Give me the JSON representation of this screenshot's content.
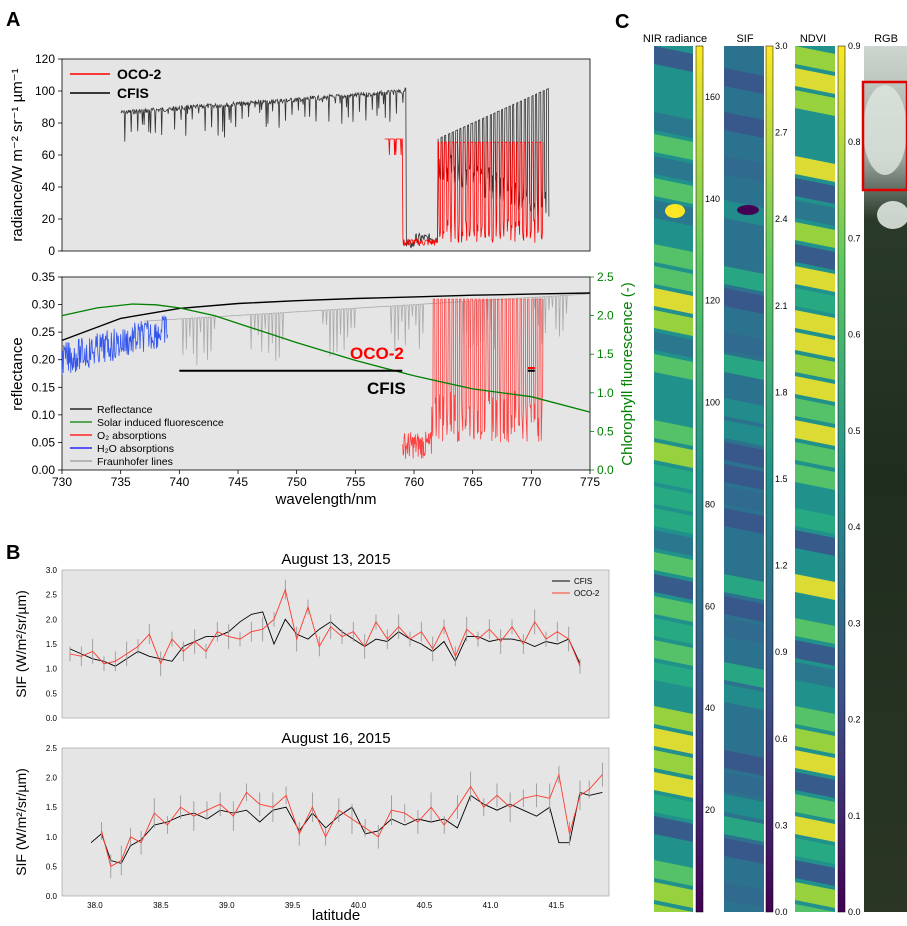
{
  "panel_labels": {
    "a": "A",
    "b": "B",
    "c": "C"
  },
  "chart_data": [
    {
      "id": "A-top",
      "type": "line",
      "title": "",
      "xlabel": "",
      "ylabel": "radiance/W m⁻² sr⁻¹ µm⁻¹",
      "xlim": [
        730,
        775
      ],
      "ylim": [
        0,
        120
      ],
      "yticks": [
        "0",
        "20",
        "40",
        "60",
        "80",
        "100",
        "120"
      ],
      "grid": false,
      "legend_position": "top-left",
      "series": [
        {
          "name": "OCO-2",
          "color": "#ff0000",
          "x_range": [
            757.5,
            771.0
          ],
          "continuum": 70,
          "trough_min": 3,
          "line_count": 46
        },
        {
          "name": "CFIS",
          "color": "#000000",
          "x_range": [
            735.0,
            771.5
          ],
          "continuum_start": 88,
          "continuum_end": 104,
          "trough_min": 1,
          "line_count": 90
        }
      ]
    },
    {
      "id": "A-bottom",
      "type": "line",
      "xlabel": "wavelength/nm",
      "ylabel": "reflectance",
      "y2label": "Chlorophyll fluorescence (-)",
      "xlim": [
        730,
        775
      ],
      "ylim": [
        0.0,
        0.35
      ],
      "y2lim": [
        0.0,
        2.5
      ],
      "xticks": [
        "730",
        "735",
        "740",
        "745",
        "750",
        "755",
        "760",
        "765",
        "770",
        "775"
      ],
      "yticks": [
        "0.00",
        "0.05",
        "0.10",
        "0.15",
        "0.20",
        "0.25",
        "0.30",
        "0.35"
      ],
      "y2ticks": [
        "0.0",
        "0.5",
        "1.0",
        "1.5",
        "2.0",
        "2.5"
      ],
      "legend_position": "bottom-left",
      "series": [
        {
          "name": "Reflectance",
          "color": "#000000",
          "x": [
            730,
            735,
            740,
            745,
            750,
            755,
            760,
            765,
            770,
            775
          ],
          "y": [
            0.235,
            0.275,
            0.293,
            0.302,
            0.307,
            0.311,
            0.314,
            0.317,
            0.319,
            0.321
          ]
        },
        {
          "name": "Solar induced fluorescence",
          "color": "#008000",
          "x": [
            730,
            733,
            736,
            738,
            740,
            743,
            746,
            750,
            755,
            760,
            765,
            770,
            775
          ],
          "y": [
            2.0,
            2.1,
            2.15,
            2.14,
            2.1,
            2.0,
            1.85,
            1.65,
            1.42,
            1.22,
            1.05,
            0.95,
            0.75
          ]
        },
        {
          "name": "O₂ absorptions",
          "color": "#ff0000",
          "x_range": [
            759,
            771
          ]
        },
        {
          "name": "H₂O absorptions",
          "color": "#0000ff",
          "x_range": [
            730,
            739
          ]
        },
        {
          "name": "Fraunhofer lines",
          "color": "#999999",
          "x_range": [
            737,
            775
          ]
        }
      ],
      "annotations": [
        {
          "text": "OCO-2",
          "color": "#ff0000",
          "range": [
            769.7,
            770.3
          ],
          "y": 0.185
        },
        {
          "text": "CFIS",
          "color": "#000000",
          "range": [
            740,
            759
          ],
          "y": 0.18
        }
      ]
    },
    {
      "id": "B-top",
      "type": "line",
      "title": "August 13, 2015",
      "ylabel": "SIF (W/m²/sr/µm)",
      "ylim": [
        0.0,
        3.0
      ],
      "yticks": [
        "0.0",
        "0.5",
        "1.0",
        "1.5",
        "2.0",
        "2.5",
        "3.0"
      ],
      "legend_position": "top-right",
      "series": [
        {
          "name": "CFIS",
          "color": "#000000",
          "values": [
            1.4,
            1.3,
            1.2,
            1.15,
            1.05,
            1.2,
            1.35,
            1.25,
            1.2,
            1.15,
            1.45,
            1.55,
            1.65,
            1.65,
            1.75,
            1.95,
            2.1,
            2.15,
            1.5,
            2.0,
            1.7,
            1.6,
            1.8,
            1.95,
            1.75,
            1.6,
            1.45,
            1.6,
            1.55,
            1.75,
            1.6,
            1.5,
            1.35,
            1.55,
            1.15,
            1.65,
            1.65,
            1.55,
            1.6,
            1.6,
            1.55,
            1.45,
            1.55,
            1.5,
            1.6,
            1.1
          ]
        },
        {
          "name": "OCO-2",
          "color": "#ff3b2f",
          "values": [
            1.3,
            1.25,
            1.35,
            1.1,
            1.15,
            1.3,
            1.45,
            1.7,
            1.1,
            1.6,
            1.35,
            1.55,
            1.35,
            1.75,
            1.65,
            1.6,
            1.75,
            1.8,
            2.0,
            2.6,
            1.6,
            2.25,
            1.45,
            1.85,
            1.65,
            1.75,
            1.45,
            1.95,
            1.6,
            1.85,
            1.6,
            1.75,
            1.4,
            1.85,
            1.25,
            1.8,
            1.6,
            1.8,
            1.55,
            1.85,
            1.5,
            1.95,
            1.6,
            1.75,
            1.6,
            1.05
          ]
        }
      ]
    },
    {
      "id": "B-bottom",
      "type": "line",
      "title": "August 16, 2015",
      "xlabel": "latitude",
      "ylabel": "SIF (W/m²/sr/µm)",
      "xlim": [
        37.75,
        41.9
      ],
      "ylim": [
        0.0,
        2.5
      ],
      "xticks": [
        "38.0",
        "38.5",
        "39.0",
        "39.5",
        "40.0",
        "40.5",
        "41.0",
        "41.5"
      ],
      "yticks": [
        "0.0",
        "0.5",
        "1.0",
        "1.5",
        "2.0",
        "2.5"
      ],
      "series": [
        {
          "name": "CFIS",
          "color": "#000000",
          "x": [
            37.97,
            38.05,
            38.12,
            38.2,
            38.27,
            38.35,
            38.45,
            38.55,
            38.65,
            38.75,
            38.85,
            38.95,
            39.05,
            39.15,
            39.25,
            39.35,
            39.45,
            39.55,
            39.65,
            39.75,
            39.85,
            39.95,
            40.05,
            40.15,
            40.25,
            40.35,
            40.45,
            40.55,
            40.65,
            40.75,
            40.85,
            40.95,
            41.05,
            41.15,
            41.25,
            41.35,
            41.45,
            41.52,
            41.6,
            41.68,
            41.75,
            41.85
          ],
          "y": [
            0.9,
            1.05,
            0.6,
            0.55,
            0.85,
            0.95,
            1.2,
            1.25,
            1.35,
            1.4,
            1.3,
            1.45,
            1.4,
            1.45,
            1.25,
            1.45,
            1.5,
            1.1,
            1.4,
            1.15,
            1.35,
            1.5,
            1.05,
            1.1,
            1.3,
            1.2,
            1.3,
            1.25,
            1.3,
            1.15,
            1.7,
            1.55,
            1.45,
            1.55,
            1.45,
            1.35,
            1.5,
            0.9,
            0.9,
            1.75,
            1.7,
            1.75
          ]
        },
        {
          "name": "OCO-2",
          "color": "#ff3b2f",
          "x": [
            38.05,
            38.12,
            38.2,
            38.27,
            38.35,
            38.45,
            38.55,
            38.65,
            38.75,
            38.85,
            38.95,
            39.05,
            39.15,
            39.25,
            39.35,
            39.45,
            39.55,
            39.65,
            39.75,
            39.85,
            39.95,
            40.05,
            40.15,
            40.25,
            40.35,
            40.45,
            40.55,
            40.65,
            40.75,
            40.85,
            40.95,
            41.05,
            41.15,
            41.25,
            41.35,
            41.45,
            41.52,
            41.6,
            41.68,
            41.75,
            41.85
          ],
          "y": [
            1.1,
            0.5,
            0.6,
            1.0,
            0.9,
            1.4,
            1.2,
            1.5,
            1.35,
            1.45,
            1.55,
            1.35,
            1.75,
            1.55,
            1.5,
            1.7,
            1.05,
            1.5,
            1.0,
            1.45,
            1.3,
            1.15,
            1.0,
            1.45,
            1.4,
            1.25,
            1.5,
            1.2,
            1.5,
            1.85,
            1.5,
            1.7,
            1.5,
            1.65,
            1.7,
            1.65,
            2.05,
            1.05,
            1.7,
            1.8,
            2.05
          ]
        }
      ]
    },
    {
      "id": "C",
      "type": "heatmap",
      "strips": [
        {
          "title": "NIR radiance",
          "ticks": [
            "20",
            "40",
            "60",
            "80",
            "100",
            "120",
            "140",
            "160"
          ],
          "range": [
            0,
            170
          ]
        },
        {
          "title": "SIF",
          "ticks": [
            "0.0",
            "0.3",
            "0.6",
            "0.9",
            "1.2",
            "1.5",
            "1.8",
            "2.1",
            "2.4",
            "2.7",
            "3.0"
          ],
          "range": [
            0.0,
            3.0
          ]
        },
        {
          "title": "NDVI",
          "ticks": [
            "0.0",
            "0.1",
            "0.2",
            "0.3",
            "0.4",
            "0.5",
            "0.6",
            "0.7",
            "0.8",
            "0.9"
          ],
          "range": [
            0.0,
            0.9
          ]
        },
        {
          "title": "RGB"
        }
      ],
      "colormap": "viridis"
    }
  ]
}
